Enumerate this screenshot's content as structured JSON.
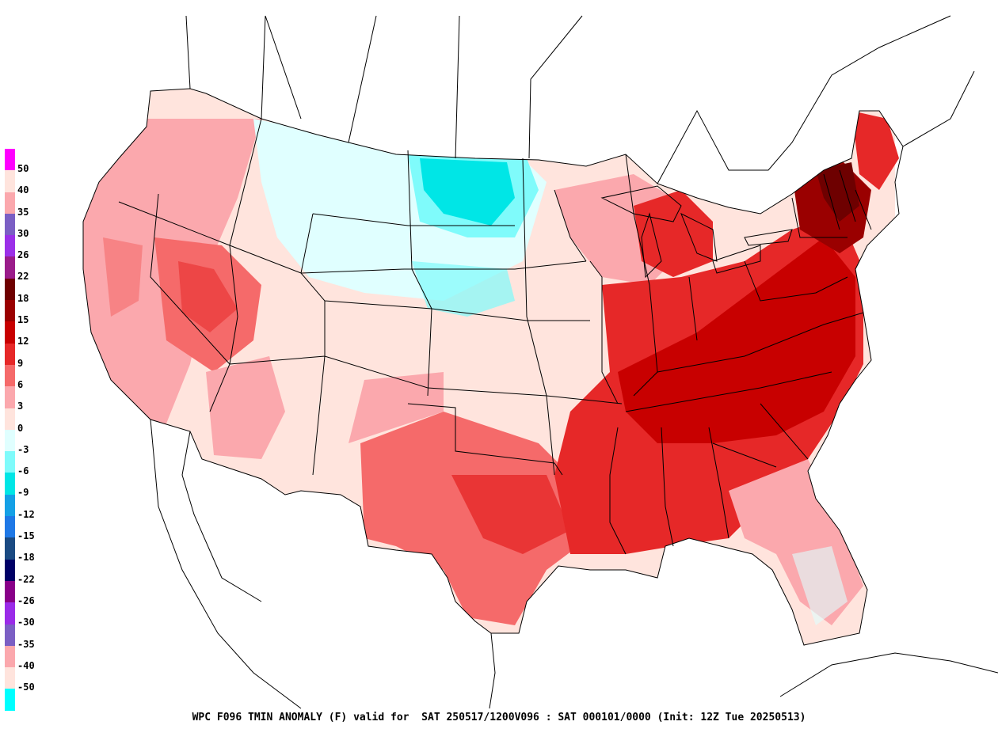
{
  "map": {
    "caption": "WPC F096 TMIN ANOMALY (F) valid for  SAT 250517/1200V096 : SAT 000101/0000 (Init: 12Z Tue 20250513)",
    "region": "Contiguous United States",
    "variable": "Minimum temperature anomaly",
    "units": "F"
  },
  "legend": {
    "items": [
      {
        "label": "50",
        "color": "#ff00ff"
      },
      {
        "label": "40",
        "color": "#ffe4dd"
      },
      {
        "label": "35",
        "color": "#fba8ad"
      },
      {
        "label": "30",
        "color": "#7b5fc4"
      },
      {
        "label": "26",
        "color": "#9b30e8"
      },
      {
        "label": "22",
        "color": "#9a1c8a"
      },
      {
        "label": "18",
        "color": "#6e0000"
      },
      {
        "label": "15",
        "color": "#9a0000"
      },
      {
        "label": "12",
        "color": "#c80000"
      },
      {
        "label": "9",
        "color": "#e62828"
      },
      {
        "label": "6",
        "color": "#f56a6a"
      },
      {
        "label": "3",
        "color": "#fba8ad"
      },
      {
        "label": "0",
        "color": "#ffe4dd"
      },
      {
        "label": "-3",
        "color": "#e0ffff"
      },
      {
        "label": "-6",
        "color": "#7ffbfb"
      },
      {
        "label": "-9",
        "color": "#00e6e6"
      },
      {
        "label": "-12",
        "color": "#14a0e6"
      },
      {
        "label": "-15",
        "color": "#1e78e6"
      },
      {
        "label": "-18",
        "color": "#1a4a82"
      },
      {
        "label": "-22",
        "color": "#000066"
      },
      {
        "label": "-26",
        "color": "#880088"
      },
      {
        "label": "-30",
        "color": "#9a2be8"
      },
      {
        "label": "-35",
        "color": "#7b5fc4"
      },
      {
        "label": "-40",
        "color": "#fba8ad"
      },
      {
        "label": "-50",
        "color": "#ffe4dd"
      },
      {
        "label": "",
        "color": "#00ffff"
      }
    ]
  },
  "regions": [
    {
      "area": "Northern Rockies / Dakotas",
      "anomaly_category": "-6"
    },
    {
      "area": "Great Plains",
      "anomaly_category": "-3"
    },
    {
      "area": "West Coast / Great Basin",
      "anomaly_category": "3 to 9"
    },
    {
      "area": "Southern Plains / Texas",
      "anomaly_category": "6 to 9"
    },
    {
      "area": "Southeast / Ohio Valley",
      "anomaly_category": "9 to 12"
    },
    {
      "area": "Northeast / New England",
      "anomaly_category": "15 to 18"
    },
    {
      "area": "Florida peninsula",
      "anomaly_category": "0 to 3"
    }
  ]
}
